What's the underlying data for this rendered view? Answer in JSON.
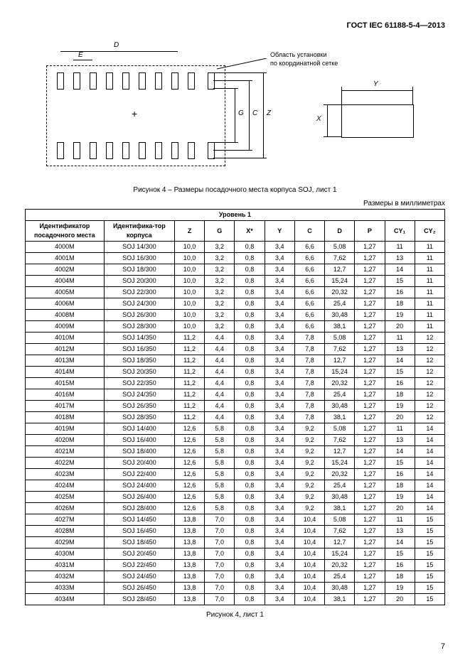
{
  "header": "ГОСТ IEC 61188-5-4—2013",
  "diagram": {
    "note1": "Область установки",
    "note2": "по координатной сетке",
    "label_D": "D",
    "label_E": "E",
    "label_G": "G",
    "label_C": "C",
    "label_Z": "Z",
    "label_X": "X",
    "label_Y": "Y"
  },
  "caption1": "Рисунок 4 – Размеры посадочного места корпуса SOJ, лист 1",
  "units": "Размеры в миллиметрах",
  "level_header": "Уровень 1",
  "columns": {
    "c1": "Идентификатор посадочного места",
    "c2": "Идентифика-тор корпуса",
    "c3": "Z",
    "c4": "G",
    "c5": "X*",
    "c6": "Y",
    "c7": "C",
    "c8": "D",
    "c9": "P",
    "c10": "CY₁",
    "c11": "CY₂"
  },
  "rows": [
    [
      "4000M",
      "SOJ 14/300",
      "10,0",
      "3,2",
      "0,8",
      "3,4",
      "6,6",
      "5,08",
      "1,27",
      "11",
      "11"
    ],
    [
      "4001M",
      "SOJ 16/300",
      "10,0",
      "3,2",
      "0,8",
      "3,4",
      "6,6",
      "7,62",
      "1,27",
      "13",
      "11"
    ],
    [
      "4002M",
      "SOJ 18/300",
      "10,0",
      "3,2",
      "0,8",
      "3,4",
      "6,6",
      "12,7",
      "1,27",
      "14",
      "11"
    ],
    [
      "4004M",
      "SOJ 20/300",
      "10,0",
      "3,2",
      "0,8",
      "3,4",
      "6,6",
      "15,24",
      "1,27",
      "15",
      "11"
    ],
    [
      "4005M",
      "SOJ 22/300",
      "10,0",
      "3,2",
      "0,8",
      "3,4",
      "6,6",
      "20,32",
      "1,27",
      "16",
      "11"
    ],
    [
      "4006M",
      "SOJ 24/300",
      "10,0",
      "3,2",
      "0,8",
      "3,4",
      "6,6",
      "25,4",
      "1,27",
      "18",
      "11"
    ],
    [
      "4008M",
      "SOJ 26/300",
      "10,0",
      "3,2",
      "0,8",
      "3,4",
      "6,6",
      "30,48",
      "1,27",
      "19",
      "11"
    ],
    [
      "4009M",
      "SOJ 28/300",
      "10,0",
      "3,2",
      "0,8",
      "3,4",
      "6,6",
      "38,1",
      "1,27",
      "20",
      "11"
    ],
    [
      "4010M",
      "SOJ 14/350",
      "11,2",
      "4,4",
      "0,8",
      "3,4",
      "7,8",
      "5,08",
      "1,27",
      "11",
      "12"
    ],
    [
      "4012M",
      "SOJ 16/350",
      "11,2",
      "4,4",
      "0,8",
      "3,4",
      "7,8",
      "7,62",
      "1,27",
      "13",
      "12"
    ],
    [
      "4013M",
      "SOJ 18/350",
      "11,2",
      "4,4",
      "0,8",
      "3,4",
      "7,8",
      "12,7",
      "1,27",
      "14",
      "12"
    ],
    [
      "4014M",
      "SOJ 20/350",
      "11,2",
      "4,4",
      "0,8",
      "3,4",
      "7,8",
      "15,24",
      "1,27",
      "15",
      "12"
    ],
    [
      "4015M",
      "SOJ 22/350",
      "11,2",
      "4,4",
      "0,8",
      "3,4",
      "7,8",
      "20,32",
      "1,27",
      "16",
      "12"
    ],
    [
      "4016M",
      "SOJ 24/350",
      "11,2",
      "4,4",
      "0,8",
      "3,4",
      "7,8",
      "25,4",
      "1,27",
      "18",
      "12"
    ],
    [
      "4017M",
      "SOJ 26/350",
      "11,2",
      "4,4",
      "0,8",
      "3,4",
      "7,8",
      "30,48",
      "1,27",
      "19",
      "12"
    ],
    [
      "4018M",
      "SOJ 28/350",
      "11,2",
      "4,4",
      "0,8",
      "3,4",
      "7,8",
      "38,1",
      "1,27",
      "20",
      "12"
    ],
    [
      "4019M",
      "SOJ 14/400",
      "12,6",
      "5,8",
      "0,8",
      "3,4",
      "9,2",
      "5,08",
      "1,27",
      "11",
      "14"
    ],
    [
      "4020M",
      "SOJ 16/400",
      "12,6",
      "5,8",
      "0,8",
      "3,4",
      "9,2",
      "7,62",
      "1,27",
      "13",
      "14"
    ],
    [
      "4021M",
      "SOJ 18/400",
      "12,6",
      "5,8",
      "0,8",
      "3,4",
      "9,2",
      "12,7",
      "1,27",
      "14",
      "14"
    ],
    [
      "4022M",
      "SOJ 20/400",
      "12,6",
      "5,8",
      "0,8",
      "3,4",
      "9,2",
      "15,24",
      "1,27",
      "15",
      "14"
    ],
    [
      "4023M",
      "SOJ 22/400",
      "12,6",
      "5,8",
      "0,8",
      "3,4",
      "9,2",
      "20,32",
      "1,27",
      "16",
      "14"
    ],
    [
      "4024M",
      "SOJ 24/400",
      "12,6",
      "5,8",
      "0,8",
      "3,4",
      "9,2",
      "25,4",
      "1,27",
      "18",
      "14"
    ],
    [
      "4025M",
      "SOJ 26/400",
      "12,6",
      "5,8",
      "0,8",
      "3,4",
      "9,2",
      "30,48",
      "1,27",
      "19",
      "14"
    ],
    [
      "4026M",
      "SOJ 28/400",
      "12,6",
      "5,8",
      "0,8",
      "3,4",
      "9,2",
      "38,1",
      "1,27",
      "20",
      "14"
    ],
    [
      "4027M",
      "SOJ 14/450",
      "13,8",
      "7,0",
      "0,8",
      "3,4",
      "10,4",
      "5,08",
      "1,27",
      "11",
      "15"
    ],
    [
      "4028M",
      "SOJ 16/450",
      "13,8",
      "7,0",
      "0,8",
      "3,4",
      "10,4",
      "7,62",
      "1,27",
      "13",
      "15"
    ],
    [
      "4029M",
      "SOJ 18/450",
      "13,8",
      "7,0",
      "0,8",
      "3,4",
      "10,4",
      "12,7",
      "1,27",
      "14",
      "15"
    ],
    [
      "4030M",
      "SOJ 20/450",
      "13,8",
      "7,0",
      "0,8",
      "3,4",
      "10,4",
      "15,24",
      "1,27",
      "15",
      "15"
    ],
    [
      "4031M",
      "SOJ 22/450",
      "13,8",
      "7,0",
      "0,8",
      "3,4",
      "10,4",
      "20,32",
      "1,27",
      "16",
      "15"
    ],
    [
      "4032M",
      "SOJ 24/450",
      "13,8",
      "7,0",
      "0,8",
      "3,4",
      "10,4",
      "25,4",
      "1,27",
      "18",
      "15"
    ],
    [
      "4033M",
      "SOJ 26/450",
      "13,8",
      "7,0",
      "0,8",
      "3,4",
      "10,4",
      "30,48",
      "1,27",
      "19",
      "15"
    ],
    [
      "4034M",
      "SOJ 28/450",
      "13,8",
      "7,0",
      "0,8",
      "3,4",
      "10,4",
      "38,1",
      "1,27",
      "20",
      "15"
    ]
  ],
  "caption2": "Рисунок 4, лист 1",
  "page_number": "7"
}
